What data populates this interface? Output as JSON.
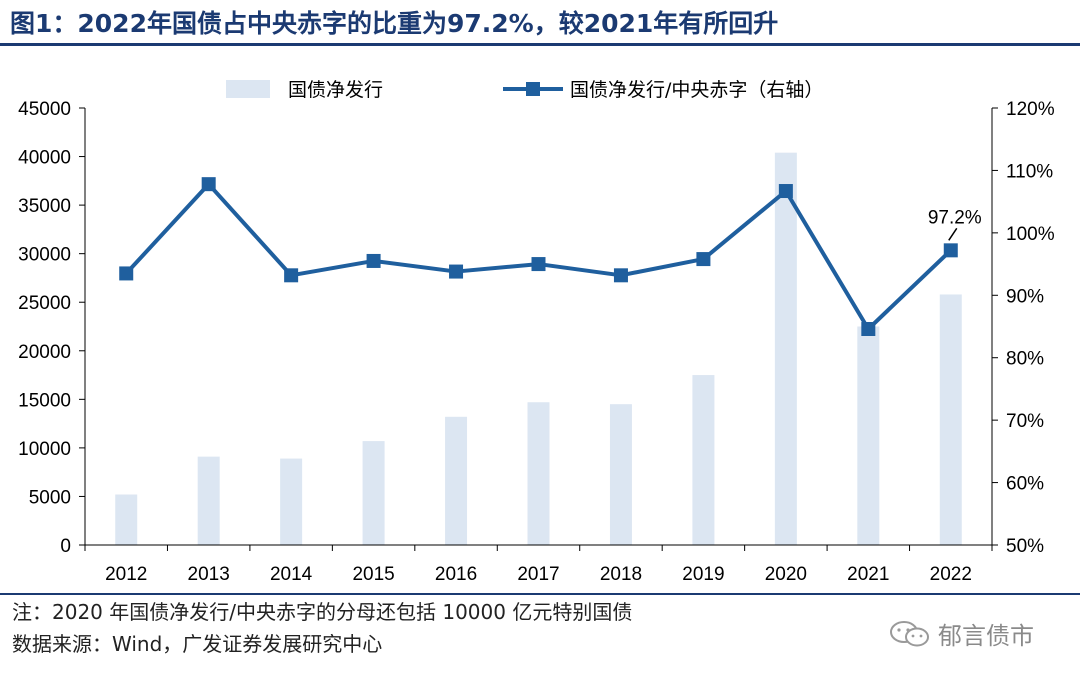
{
  "header": {
    "title": "图1：2022年国债占中央赤字的比重为97.2%，较2021年有所回升"
  },
  "chart_data": {
    "type": "bar",
    "categories": [
      "2012",
      "2013",
      "2014",
      "2015",
      "2016",
      "2017",
      "2018",
      "2019",
      "2020",
      "2021",
      "2022"
    ],
    "series": [
      {
        "name": "国债净发行",
        "kind": "bar",
        "axis": "left",
        "color": "#dce6f2",
        "values": [
          5200,
          9100,
          8900,
          10700,
          13200,
          14700,
          14500,
          17500,
          40400,
          22500,
          25800
        ]
      },
      {
        "name": "国债净发行/中央赤字（右轴）",
        "kind": "line",
        "axis": "right",
        "color": "#1f5f9e",
        "values": [
          93.5,
          107.8,
          93.2,
          95.5,
          93.8,
          95.0,
          93.2,
          95.8,
          106.7,
          84.6,
          97.2
        ]
      }
    ],
    "y_left": {
      "min": 0,
      "max": 45000,
      "step": 5000,
      "ticks": [
        "0",
        "5000",
        "10000",
        "15000",
        "20000",
        "25000",
        "30000",
        "35000",
        "40000",
        "45000"
      ]
    },
    "y_right": {
      "min": 50,
      "max": 120,
      "step": 10,
      "ticks": [
        "50%",
        "60%",
        "70%",
        "80%",
        "90%",
        "100%",
        "110%",
        "120%"
      ]
    },
    "annotation": {
      "category": "2022",
      "text": "97.2%"
    },
    "legend_position": "top-center",
    "grid": false
  },
  "footer": {
    "note": "注：2020 年国债净发行/中央赤字的分母还包括 10000 亿元特别国债",
    "source": "数据来源：Wind，广发证券发展研究中心",
    "watermark": "郁言债市"
  },
  "icons": {
    "watermark_icon": "wechat-icon"
  }
}
